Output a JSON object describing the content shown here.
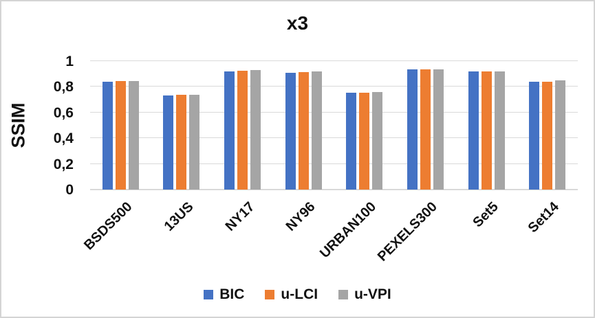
{
  "chart_data": {
    "type": "bar",
    "title": "x3",
    "ylabel": "SSIM",
    "xlabel": "",
    "categories": [
      "BSDS500",
      "13US",
      "NY17",
      "NY96",
      "URBAN100",
      "PEXELS300",
      "Set5",
      "Set14"
    ],
    "series": [
      {
        "name": "BIC",
        "color": "#4472C4",
        "values": [
          0.84,
          0.735,
          0.92,
          0.91,
          0.755,
          0.935,
          0.918,
          0.84
        ]
      },
      {
        "name": "u-LCI",
        "color": "#ED7D31",
        "values": [
          0.845,
          0.74,
          0.927,
          0.915,
          0.756,
          0.937,
          0.921,
          0.841
        ]
      },
      {
        "name": "u-VPI",
        "color": "#A5A5A5",
        "values": [
          0.843,
          0.738,
          0.932,
          0.92,
          0.762,
          0.934,
          0.921,
          0.848
        ]
      }
    ],
    "ylim": [
      0,
      1
    ],
    "yticks": [
      {
        "label": "0",
        "value": 0
      },
      {
        "label": "0,2",
        "value": 0.2
      },
      {
        "label": "0,4",
        "value": 0.4
      },
      {
        "label": "0,6",
        "value": 0.6
      },
      {
        "label": "0,8",
        "value": 0.8
      },
      {
        "label": "1",
        "value": 1
      }
    ],
    "grid": true,
    "legend_position": "bottom",
    "decimal_separator": ",",
    "colors": {
      "gridline": "#d9d9d9",
      "frame_border": "#d4d4d4",
      "text": "#111111"
    }
  }
}
